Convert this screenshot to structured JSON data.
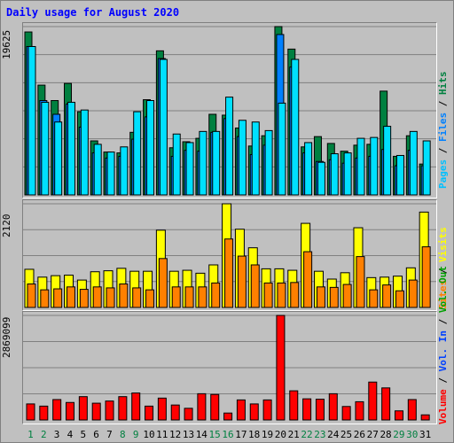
{
  "title": "Daily usage for August 2020",
  "chart_data": {
    "type": "bar",
    "categories": [
      "1",
      "2",
      "3",
      "4",
      "5",
      "6",
      "7",
      "8",
      "9",
      "10",
      "11",
      "12",
      "13",
      "14",
      "15",
      "16",
      "17",
      "18",
      "19",
      "20",
      "21",
      "22",
      "23",
      "24",
      "25",
      "26",
      "27",
      "28",
      "29",
      "30",
      "31"
    ],
    "weekend_days": [
      "1",
      "2",
      "8",
      "9",
      "15",
      "16",
      "22",
      "23",
      "29",
      "30"
    ],
    "panels": [
      {
        "name": "hits",
        "y_max_label": "19625",
        "ylim": [
          0,
          19625
        ],
        "series": [
          {
            "name": "Hits",
            "color": "#008040",
            "values": [
              19000,
              12800,
              11000,
              13000,
              9700,
              6300,
              5000,
              4900,
              7300,
              11100,
              16800,
              5500,
              6200,
              6600,
              9400,
              9300,
              7800,
              5700,
              6900,
              19625,
              17000,
              5600,
              6800,
              6000,
              5100,
              5800,
              5900,
              12100,
              4500,
              6900,
              3600
            ]
          },
          {
            "name": "Files",
            "color": "#0080ff",
            "values": [
              17300,
              11000,
              9400,
              10600,
              7900,
              4900,
              4300,
              4500,
              6500,
              9100,
              15900,
              4500,
              5200,
              5100,
              7300,
              8900,
              6800,
              4700,
              5800,
              18700,
              14900,
              4900,
              3900,
              4100,
              3700,
              4300,
              4500,
              5300,
              3400,
              5200,
              3400
            ]
          },
          {
            "name": "Pages",
            "color": "#00e0ff",
            "values": [
              17300,
              10800,
              8500,
              10800,
              9900,
              5900,
              5000,
              5600,
              9700,
              11000,
              15800,
              7100,
              6100,
              7400,
              7400,
              11400,
              8700,
              8500,
              7500,
              10700,
              15800,
              6100,
              3800,
              4800,
              4900,
              6600,
              6700,
              8000,
              4600,
              7400,
              6300
            ]
          }
        ]
      },
      {
        "name": "sites",
        "y_max_label": "2120",
        "ylim": [
          0,
          2120
        ],
        "series": [
          {
            "name": "Visits",
            "color": "#ffff00",
            "values": [
              780,
              620,
              650,
              660,
              560,
              730,
              750,
              800,
              740,
              740,
              1580,
              740,
              760,
              700,
              870,
              2120,
              1600,
              1220,
              790,
              790,
              760,
              1720,
              740,
              580,
              710,
              1630,
              610,
              620,
              640,
              810,
              1950
            ]
          },
          {
            "name": "Sites",
            "color": "#ff8000",
            "values": [
              480,
              360,
              380,
              420,
              370,
              420,
              400,
              480,
              400,
              360,
              1000,
              420,
              420,
              420,
              500,
              1400,
              1050,
              870,
              500,
              500,
              510,
              1140,
              420,
              410,
              470,
              1040,
              360,
              460,
              340,
              560,
              1240
            ]
          }
        ]
      },
      {
        "name": "volume",
        "y_max_label": "2869099",
        "ylim": [
          0,
          2869099
        ],
        "series": [
          {
            "name": "Volume",
            "color": "#ff0000",
            "values": [
              440000,
              380000,
              560000,
              480000,
              640000,
              460000,
              520000,
              640000,
              740000,
              380000,
              600000,
              410000,
              320000,
              720000,
              700000,
              190000,
              550000,
              440000,
              550000,
              2869099,
              800000,
              580000,
              570000,
              720000,
              370000,
              500000,
              1040000,
              880000,
              250000,
              560000,
              140000
            ]
          }
        ]
      }
    ]
  },
  "right_legends": {
    "hits": [
      {
        "text": "Pages",
        "color": "#00c0ff"
      },
      {
        "text": " / ",
        "color": "#000000"
      },
      {
        "text": "Files",
        "color": "#0080ff"
      },
      {
        "text": " / ",
        "color": "#000000"
      },
      {
        "text": "Hits",
        "color": "#008040"
      }
    ],
    "sites": [
      {
        "text": "Sites",
        "color": "#ff8000"
      },
      {
        "text": " / ",
        "color": "#000000"
      },
      {
        "text": "Visits",
        "color": "#ffff00"
      }
    ],
    "volume": [
      {
        "text": "Volume",
        "color": "#ff0000"
      },
      {
        "text": " / ",
        "color": "#000000"
      },
      {
        "text": "Vol. In",
        "color": "#0040ff"
      },
      {
        "text": " / ",
        "color": "#000000"
      },
      {
        "text": "Vol. Out",
        "color": "#00a000"
      }
    ]
  },
  "colors": {
    "title": "#0000ff",
    "weekday_label": "#000000",
    "weekend_label": "#008040"
  }
}
